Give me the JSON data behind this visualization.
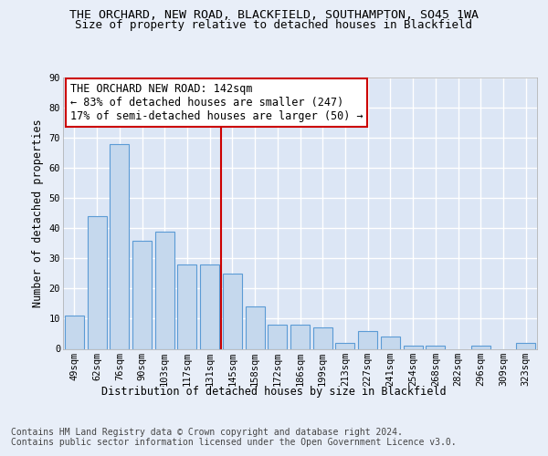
{
  "title1": "THE ORCHARD, NEW ROAD, BLACKFIELD, SOUTHAMPTON, SO45 1WA",
  "title2": "Size of property relative to detached houses in Blackfield",
  "xlabel": "Distribution of detached houses by size in Blackfield",
  "ylabel": "Number of detached properties",
  "footer1": "Contains HM Land Registry data © Crown copyright and database right 2024.",
  "footer2": "Contains public sector information licensed under the Open Government Licence v3.0.",
  "categories": [
    "49sqm",
    "62sqm",
    "76sqm",
    "90sqm",
    "103sqm",
    "117sqm",
    "131sqm",
    "145sqm",
    "158sqm",
    "172sqm",
    "186sqm",
    "199sqm",
    "213sqm",
    "227sqm",
    "241sqm",
    "254sqm",
    "268sqm",
    "282sqm",
    "296sqm",
    "309sqm",
    "323sqm"
  ],
  "values": [
    11,
    44,
    68,
    36,
    39,
    28,
    28,
    25,
    14,
    8,
    8,
    7,
    2,
    6,
    4,
    1,
    1,
    0,
    1,
    0,
    2
  ],
  "bar_color": "#c5d8ed",
  "bar_edge_color": "#5b9bd5",
  "marker_line_index": 7,
  "marker_label": "THE ORCHARD NEW ROAD: 142sqm",
  "marker_sub1": "← 83% of detached houses are smaller (247)",
  "marker_sub2": "17% of semi-detached houses are larger (50) →",
  "annotation_box_color": "#ffffff",
  "annotation_box_edge": "#cc0000",
  "ylim": [
    0,
    90
  ],
  "yticks": [
    0,
    10,
    20,
    30,
    40,
    50,
    60,
    70,
    80,
    90
  ],
  "bg_color": "#e8eef8",
  "plot_bg_color": "#dce6f5",
  "grid_color": "#ffffff",
  "title_fontsize": 9.5,
  "subtitle_fontsize": 9.0,
  "axis_label_fontsize": 8.5,
  "tick_fontsize": 7.5,
  "annotation_fontsize": 8.5,
  "footer_fontsize": 7.0
}
